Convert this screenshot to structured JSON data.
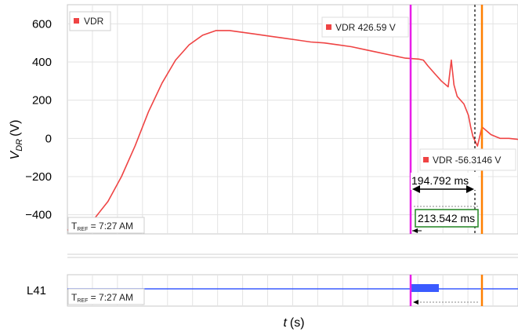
{
  "chart_data": [
    {
      "type": "line",
      "title": "",
      "xlabel": "",
      "ylabel": "V_DR (V)",
      "ylabel_main": "V",
      "ylabel_sub": "DR",
      "ylabel_unit": "(V)",
      "ylim": [
        -500,
        700
      ],
      "yticks": [
        600,
        400,
        200,
        0,
        -200,
        -400
      ],
      "ytick_labels": [
        "600",
        "400",
        "200",
        "0",
        "−200",
        "−400"
      ],
      "grid": true,
      "series": [
        {
          "name": "VDR",
          "color": "#ef4444",
          "x": [
            0.0,
            0.03,
            0.06,
            0.09,
            0.12,
            0.15,
            0.18,
            0.21,
            0.24,
            0.27,
            0.3,
            0.33,
            0.36,
            0.39,
            0.42,
            0.45,
            0.48,
            0.51,
            0.54,
            0.57,
            0.6,
            0.63,
            0.66,
            0.69,
            0.72,
            0.75,
            0.78,
            0.79,
            0.8,
            0.815,
            0.83,
            0.845,
            0.852,
            0.858,
            0.865,
            0.88,
            0.89,
            0.895,
            0.9,
            0.91,
            0.92,
            0.94,
            0.96,
            0.98,
            1.0
          ],
          "y": [
            -480,
            -465,
            -420,
            -330,
            -200,
            -40,
            140,
            290,
            410,
            490,
            540,
            565,
            565,
            555,
            545,
            535,
            525,
            515,
            505,
            500,
            490,
            480,
            465,
            450,
            435,
            420,
            415,
            410,
            380,
            340,
            300,
            270,
            410,
            280,
            220,
            180,
            120,
            60,
            10,
            -40,
            60,
            20,
            0,
            0,
            -5
          ]
        }
      ],
      "legend": "top-left",
      "legend_label": "VDR",
      "cursors": [
        {
          "name": "cursor-a",
          "color": "#e81ee8",
          "readout": "VDR 426.59 V"
        },
        {
          "name": "cursor-b",
          "color": "#ff7f00",
          "readout": "VDR  -56.3146 V"
        }
      ],
      "measurements": [
        "194.792 ms",
        "213.542 ms"
      ],
      "reference": "T_REF = 7:27 AM"
    },
    {
      "type": "line",
      "title": "",
      "xlabel": "",
      "ylabel": "L41",
      "series": [
        {
          "name": "L41",
          "color": "#3b5bff",
          "note": "constant level line with a highlighted segment after cursor-a"
        }
      ],
      "reference": "T_REF = 7:27 AM"
    }
  ],
  "xaxis": {
    "label_main": "t",
    "label_unit": "(s)"
  },
  "tref": {
    "prefix": "T",
    "sub": "REF",
    "suffix": " = 7:27 AM"
  }
}
